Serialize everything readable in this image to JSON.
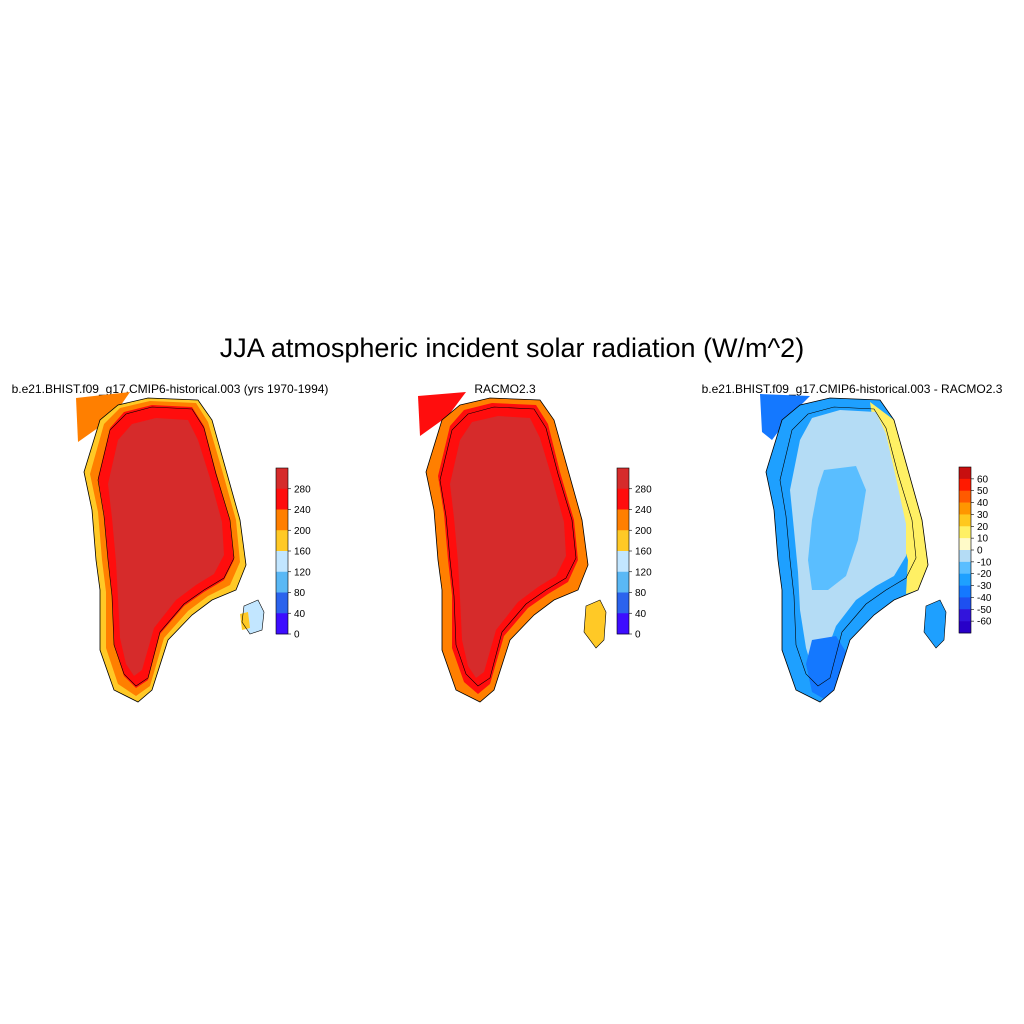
{
  "figure": {
    "title": "JJA atmospheric incident solar radiation (W/m^2)"
  },
  "panels": [
    {
      "id": "model",
      "subtitle": "b.e21.BHIST.f09_g17.CMIP6-historical.003 (yrs 1970-1994)",
      "colorbar": {
        "labels": [
          "280",
          "240",
          "200",
          "160",
          "120",
          "80",
          "40",
          "0"
        ],
        "colors": [
          "#d62b2b",
          "#ff0d0d",
          "#ff7f00",
          "#ffc926",
          "#c2e6ff",
          "#5ab8f5",
          "#2b63ed",
          "#3d0dff"
        ]
      }
    },
    {
      "id": "obs",
      "subtitle": "RACMO2.3",
      "colorbar": {
        "labels": [
          "280",
          "240",
          "200",
          "160",
          "120",
          "80",
          "40",
          "0"
        ],
        "colors": [
          "#d62b2b",
          "#ff0d0d",
          "#ff7f00",
          "#ffc926",
          "#c2e6ff",
          "#5ab8f5",
          "#2b63ed",
          "#3d0dff"
        ]
      }
    },
    {
      "id": "diff",
      "subtitle": "b.e21.BHIST.f09_g17.CMIP6-historical.003 - RACMO2.3",
      "colorbar": {
        "labels": [
          "60",
          "50",
          "40",
          "30",
          "20",
          "10",
          "0",
          "-10",
          "-20",
          "-30",
          "-40",
          "-50",
          "-60"
        ],
        "colors": [
          "#c80f0f",
          "#ff1a00",
          "#ff5a00",
          "#ff9600",
          "#ffc81e",
          "#fff064",
          "#fffac8",
          "#b4dcf5",
          "#5abeff",
          "#1ea0ff",
          "#1478ff",
          "#1e50f0",
          "#3214dc",
          "#2800c8"
        ]
      }
    }
  ]
}
